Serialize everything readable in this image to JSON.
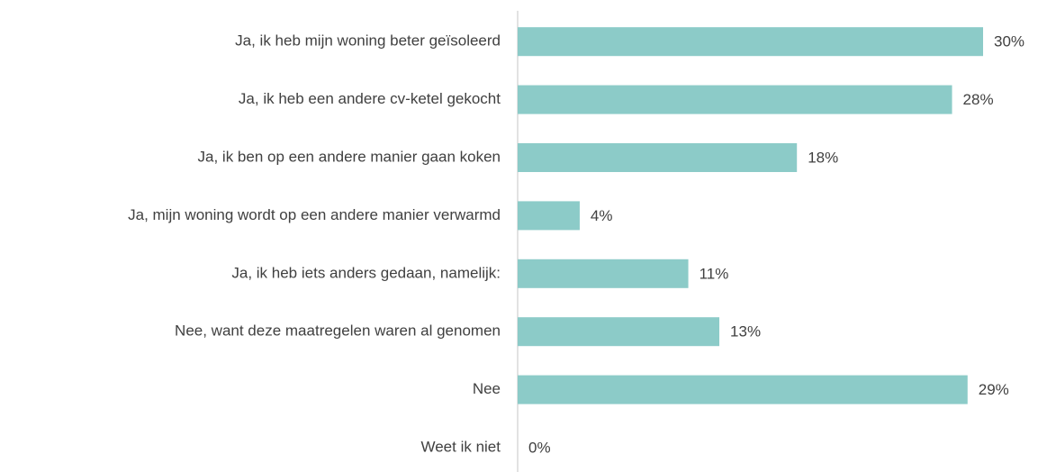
{
  "chart_data": {
    "type": "barh",
    "categories": [
      "Ja, ik heb mijn woning beter geïsoleerd",
      "Ja, ik heb een andere cv-ketel gekocht",
      "Ja, ik ben op een andere manier gaan koken",
      "Ja, mijn woning wordt op een andere manier verwarmd",
      "Ja, ik heb iets anders gedaan, namelijk:",
      "Nee, want deze maatregelen waren al genomen",
      "Nee",
      "Weet ik niet"
    ],
    "values": [
      30,
      28,
      18,
      4,
      11,
      13,
      29,
      0
    ],
    "value_labels": [
      "30%",
      "28%",
      "18%",
      "4%",
      "11%",
      "13%",
      "29%",
      "0%"
    ],
    "color": "#8ccbc8",
    "xlim": [
      0,
      30
    ]
  }
}
